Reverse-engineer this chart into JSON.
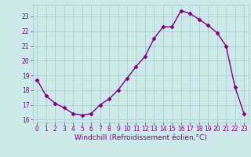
{
  "x": [
    0,
    1,
    2,
    3,
    4,
    5,
    6,
    7,
    8,
    9,
    10,
    11,
    12,
    13,
    14,
    15,
    16,
    17,
    18,
    19,
    20,
    21,
    22,
    23
  ],
  "y": [
    18.7,
    17.6,
    17.1,
    16.8,
    16.4,
    16.3,
    16.4,
    17.0,
    17.4,
    18.0,
    18.8,
    19.6,
    20.3,
    21.5,
    22.3,
    22.3,
    23.4,
    23.2,
    22.8,
    22.4,
    21.9,
    21.0,
    18.2,
    16.4
  ],
  "line_color": "#800080",
  "marker": "D",
  "marker_size": 2.5,
  "bg_color": "#cce8e8",
  "grid_color": "#aacfcf",
  "xlabel": "Windchill (Refroidissement éolien,°C)",
  "xlim": [
    -0.5,
    23.5
  ],
  "ylim": [
    15.8,
    23.8
  ],
  "yticks": [
    16,
    17,
    18,
    19,
    20,
    21,
    22,
    23
  ],
  "xticks": [
    0,
    1,
    2,
    3,
    4,
    5,
    6,
    7,
    8,
    9,
    10,
    11,
    12,
    13,
    14,
    15,
    16,
    17,
    18,
    19,
    20,
    21,
    22,
    23
  ],
  "font_color": "#800080",
  "tick_fontsize": 5.5,
  "xlabel_fontsize": 6.5,
  "line_width": 1.0
}
